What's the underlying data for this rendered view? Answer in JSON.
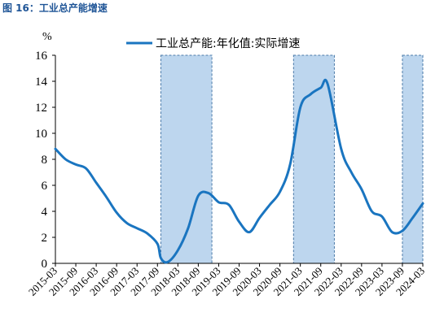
{
  "figure_title": "图 16：工业总产能增速",
  "colors": {
    "line": "#1a75c0",
    "band_fill": "#bdd6ee",
    "band_stroke": "#4a79a8",
    "title": "#1f5597"
  },
  "chart_data": {
    "type": "line",
    "title": "",
    "ylabel": "%",
    "xlabel": "",
    "ylim": [
      0,
      16
    ],
    "yticks": [
      0,
      2,
      4,
      6,
      8,
      10,
      12,
      14,
      16
    ],
    "xticks": [
      "2015-03",
      "2015-09",
      "2016-03",
      "2016-09",
      "2017-03",
      "2017-09",
      "2018-03",
      "2018-09",
      "2019-03",
      "2019-09",
      "2020-03",
      "2020-09",
      "2021-03",
      "2021-09",
      "2022-03",
      "2022-09",
      "2023-03",
      "2023-09",
      "2024-03"
    ],
    "grid": false,
    "legend": "top",
    "series": [
      {
        "name": "工业总产能:年化值:实际增速",
        "x": [
          "2015-03",
          "2015-06",
          "2015-09",
          "2015-12",
          "2016-03",
          "2016-06",
          "2016-09",
          "2016-12",
          "2017-03",
          "2017-06",
          "2017-09",
          "2017-10",
          "2017-12",
          "2018-03",
          "2018-06",
          "2018-09",
          "2018-12",
          "2019-03",
          "2019-06",
          "2019-09",
          "2019-12",
          "2020-03",
          "2020-06",
          "2020-09",
          "2020-12",
          "2021-03",
          "2021-06",
          "2021-09",
          "2021-11",
          "2022-03",
          "2022-06",
          "2022-09",
          "2022-12",
          "2023-03",
          "2023-06",
          "2023-09",
          "2023-12",
          "2024-03"
        ],
        "values": [
          8.8,
          8.0,
          7.6,
          7.3,
          6.2,
          5.1,
          3.9,
          3.1,
          2.7,
          2.3,
          1.5,
          0.4,
          0.1,
          1.0,
          2.7,
          5.2,
          5.4,
          4.7,
          4.5,
          3.2,
          2.4,
          3.5,
          4.5,
          5.5,
          7.6,
          12.0,
          13.0,
          13.5,
          13.8,
          8.8,
          7.0,
          5.7,
          4.0,
          3.6,
          2.4,
          2.5,
          3.5,
          4.6
        ]
      }
    ],
    "shaded_periods": [
      {
        "start": "2017-10",
        "end": "2019-01"
      },
      {
        "start": "2021-01",
        "end": "2022-01"
      },
      {
        "start": "2023-09",
        "end": "2024-03"
      }
    ]
  }
}
